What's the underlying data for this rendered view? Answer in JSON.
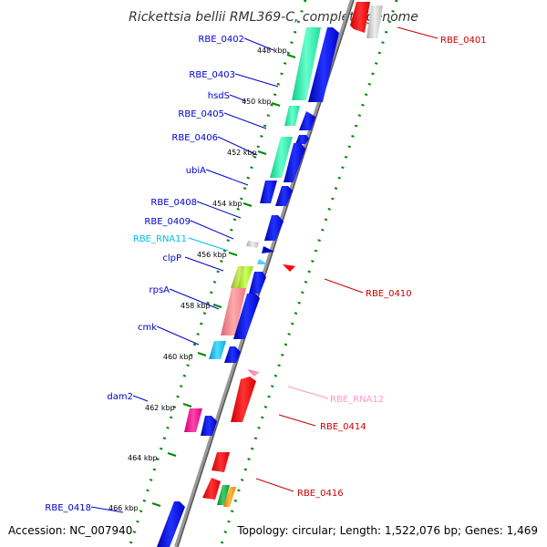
{
  "title": "Rickettsia bellii RML369-C, complete genome",
  "accession": "Accession: NC_007940",
  "topology": "Topology: circular; Length: 1,522,076 bp; Genes: 1,469",
  "colors": {
    "forward_label": "#0000cc",
    "reverse_label": "#cc0000",
    "rna_forward_label": "#00bbee",
    "rna_reverse_label": "#ff99cc",
    "backbone": "#888888",
    "tick": "#008800"
  },
  "kbp_ticks": [
    "448 kbp",
    "450 kbp",
    "452 kbp",
    "454 kbp",
    "456 kbp",
    "458 kbp",
    "460 kbp",
    "462 kbp",
    "464 kbp",
    "466 kbp"
  ],
  "left_labels": [
    "RBE_0402",
    "RBE_0403",
    "hsdS",
    "RBE_0405",
    "RBE_0406",
    "ubiA",
    "RBE_0408",
    "RBE_0409",
    "RBE_RNA11",
    "clpP",
    "rpsA",
    "cmk",
    "dam2",
    "RBE_0418"
  ],
  "right_labels": [
    "RBE_0401",
    "RBE_0410",
    "RBE_RNA12",
    "RBE_0414",
    "RBE_0416"
  ]
}
